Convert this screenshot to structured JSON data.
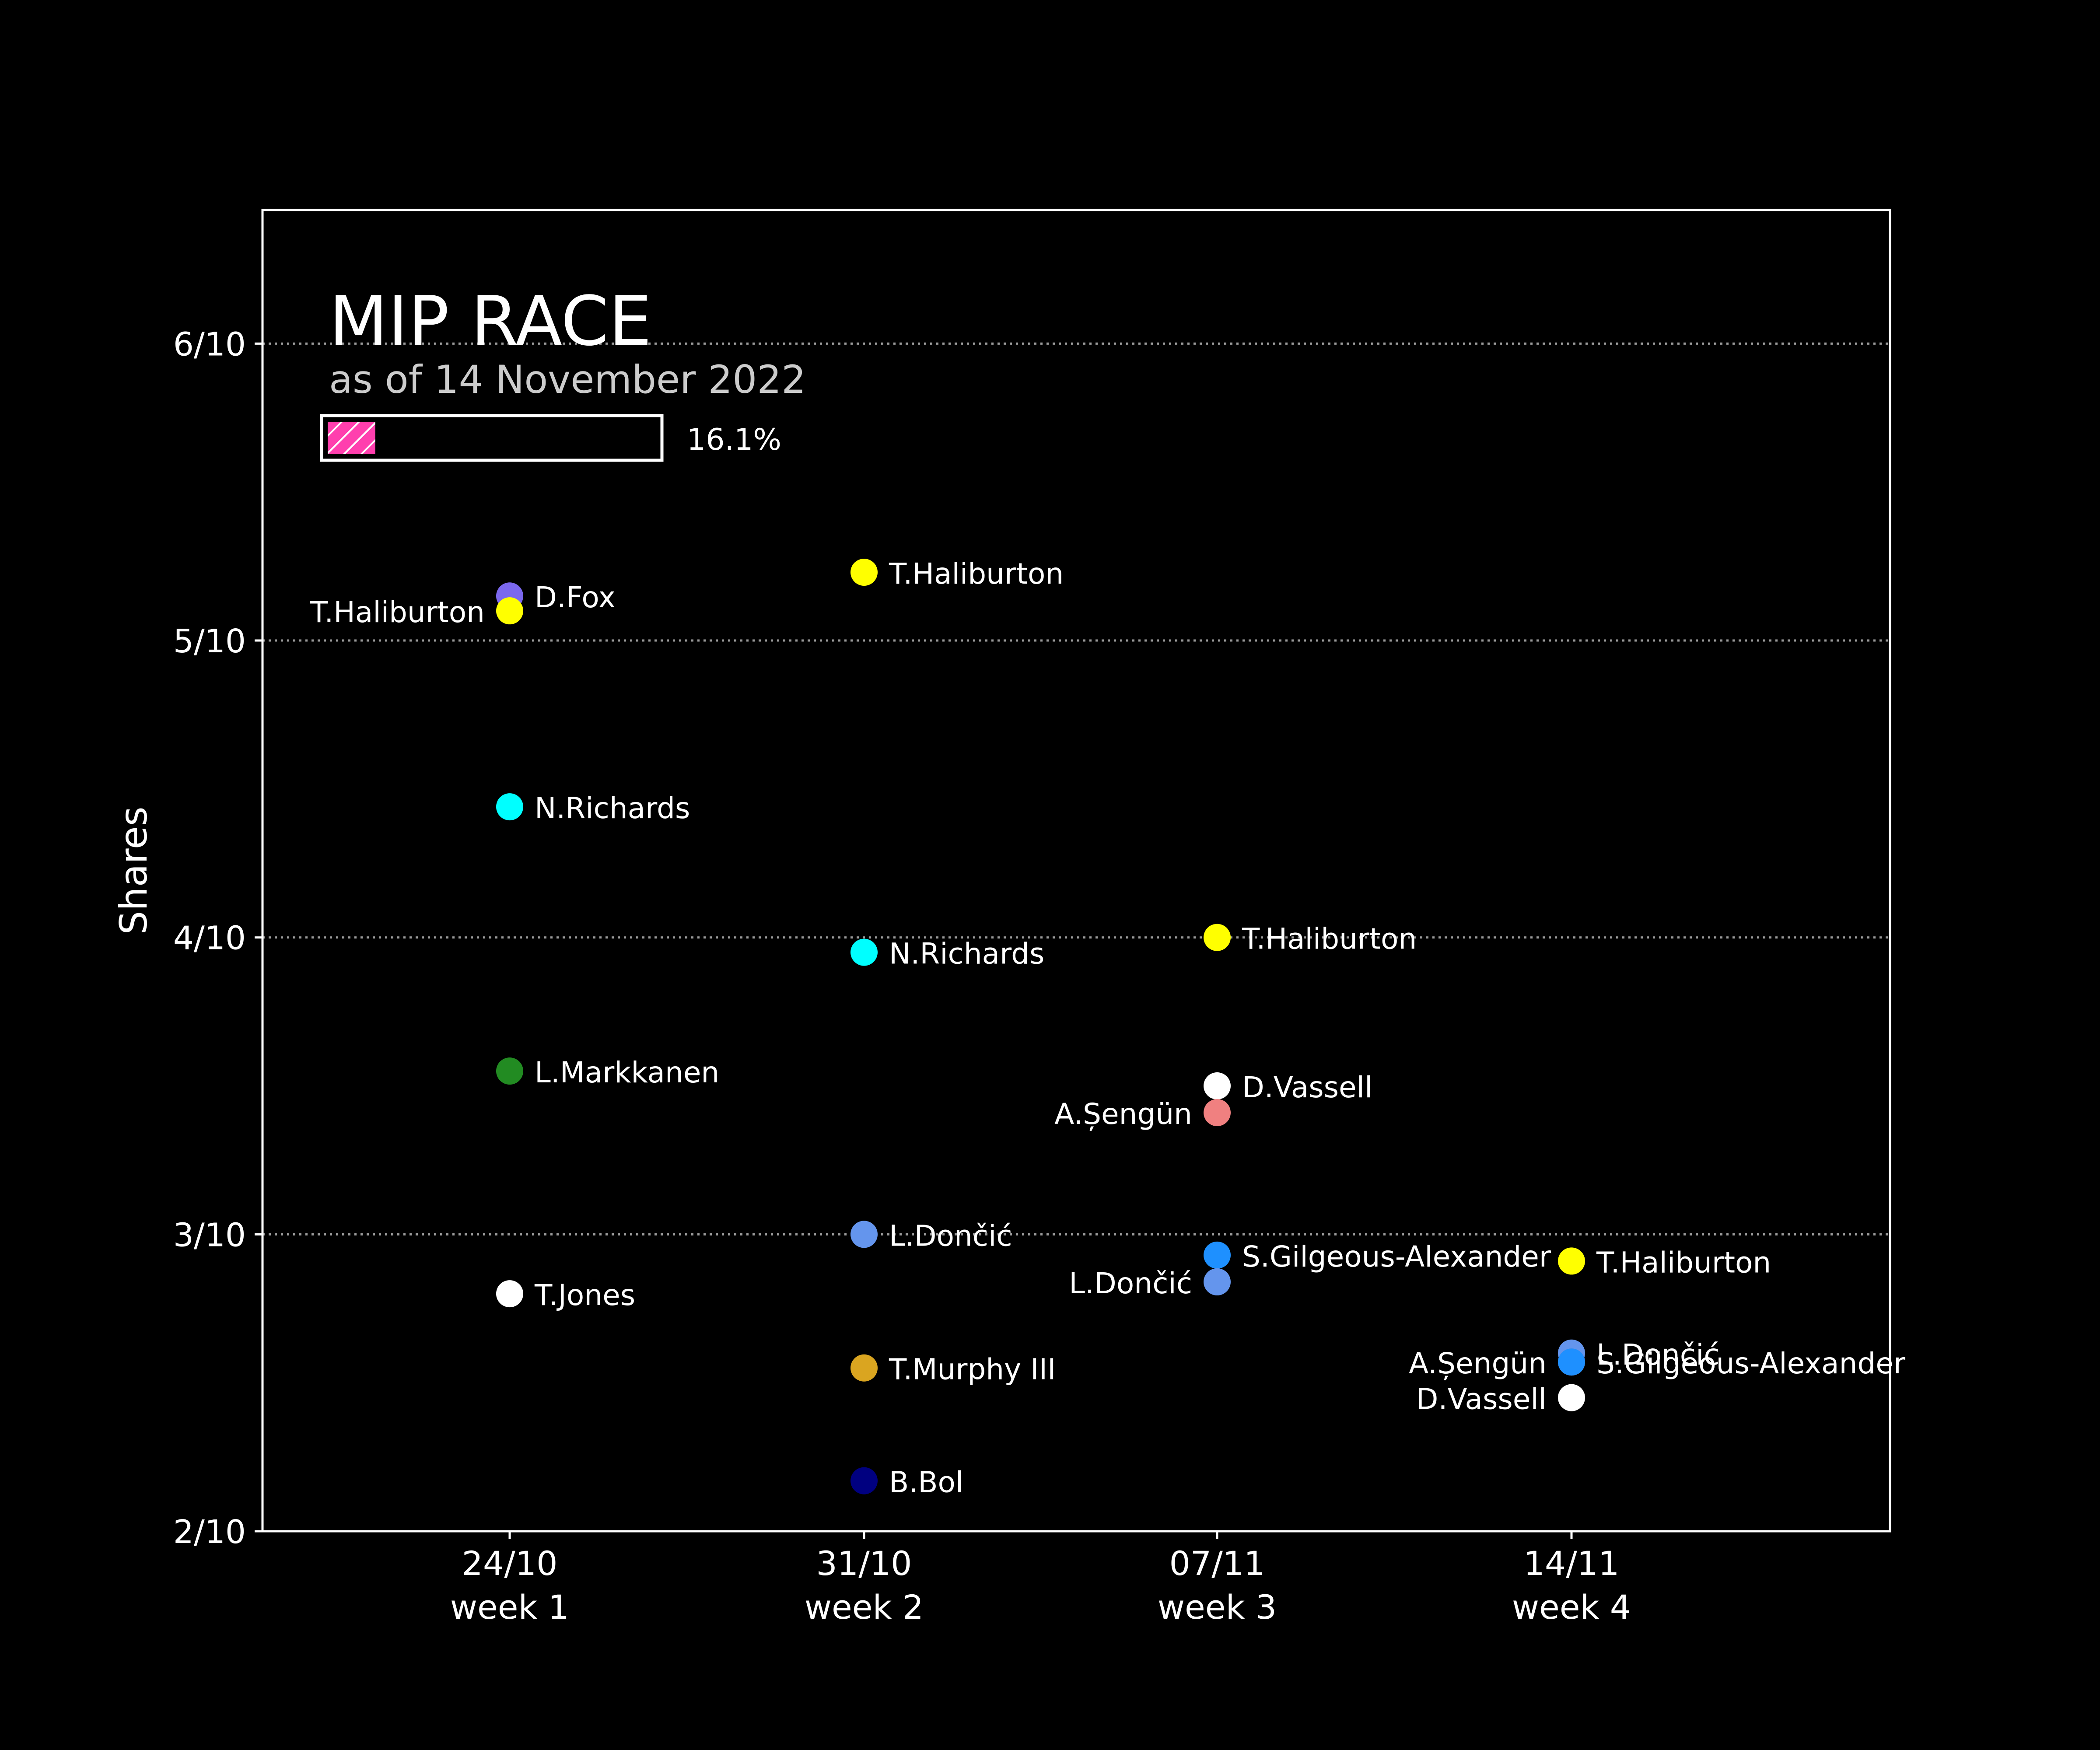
{
  "chart_data": {
    "type": "scatter",
    "title": "MIP RACE",
    "subtitle": "as of 14 November 2022",
    "progress": {
      "value": 16.1,
      "label": "16.1%"
    },
    "ylabel": "Shares",
    "xlabel": "",
    "ylim": [
      0.2,
      0.645
    ],
    "yticks": [
      {
        "value": 0.2,
        "label": "2/10"
      },
      {
        "value": 0.3,
        "label": "3/10"
      },
      {
        "value": 0.4,
        "label": "4/10"
      },
      {
        "value": 0.5,
        "label": "5/10"
      },
      {
        "value": 0.6,
        "label": "6/10"
      }
    ],
    "grid": true,
    "categories": [
      {
        "date": "24/10",
        "week": "week 1"
      },
      {
        "date": "31/10",
        "week": "week 2"
      },
      {
        "date": "07/11",
        "week": "week 3"
      },
      {
        "date": "14/11",
        "week": "week 4"
      }
    ],
    "points": [
      {
        "week": 0,
        "name": "D.Fox",
        "value": 0.515,
        "color": "#7b68ee",
        "label_side": "right"
      },
      {
        "week": 0,
        "name": "T.Haliburton",
        "value": 0.51,
        "color": "#ffff00",
        "label_side": "left"
      },
      {
        "week": 0,
        "name": "N.Richards",
        "value": 0.444,
        "color": "#00ffff",
        "label_side": "right"
      },
      {
        "week": 0,
        "name": "L.Markkanen",
        "value": 0.355,
        "color": "#228b22",
        "label_side": "right"
      },
      {
        "week": 0,
        "name": "T.Jones",
        "value": 0.28,
        "color": "#ffffff",
        "label_side": "right"
      },
      {
        "week": 1,
        "name": "T.Haliburton",
        "value": 0.523,
        "color": "#ffff00",
        "label_side": "right"
      },
      {
        "week": 1,
        "name": "N.Richards",
        "value": 0.395,
        "color": "#00ffff",
        "label_side": "right"
      },
      {
        "week": 1,
        "name": "L.Dončić",
        "value": 0.3,
        "color": "#6495ed",
        "label_side": "right"
      },
      {
        "week": 1,
        "name": "T.Murphy III",
        "value": 0.255,
        "color": "#daa520",
        "label_side": "right"
      },
      {
        "week": 1,
        "name": "B.Bol",
        "value": 0.217,
        "color": "#000080",
        "label_side": "right"
      },
      {
        "week": 2,
        "name": "T.Haliburton",
        "value": 0.4,
        "color": "#ffff00",
        "label_side": "right"
      },
      {
        "week": 2,
        "name": "D.Vassell",
        "value": 0.35,
        "color": "#ffffff",
        "label_side": "right"
      },
      {
        "week": 2,
        "name": "A.Șengün",
        "value": 0.341,
        "color": "#f08080",
        "label_side": "left"
      },
      {
        "week": 2,
        "name": "S.Gilgeous-Alexander",
        "value": 0.293,
        "color": "#1e90ff",
        "label_side": "right"
      },
      {
        "week": 2,
        "name": "L.Dončić",
        "value": 0.284,
        "color": "#6495ed",
        "label_side": "left"
      },
      {
        "week": 3,
        "name": "T.Haliburton",
        "value": 0.291,
        "color": "#ffff00",
        "label_side": "right"
      },
      {
        "week": 3,
        "name": "L.Dončić",
        "value": 0.26,
        "color": "#6495ed",
        "label_side": "right"
      },
      {
        "week": 3,
        "name": "A.Șengün",
        "value": 0.257,
        "color": "#f08080",
        "label_side": "left"
      },
      {
        "week": 3,
        "name": "S.Gilgeous-Alexander",
        "value": 0.257,
        "color": "#1e90ff",
        "label_side": "right"
      },
      {
        "week": 3,
        "name": "D.Vassell",
        "value": 0.245,
        "color": "#ffffff",
        "label_side": "left"
      }
    ]
  }
}
